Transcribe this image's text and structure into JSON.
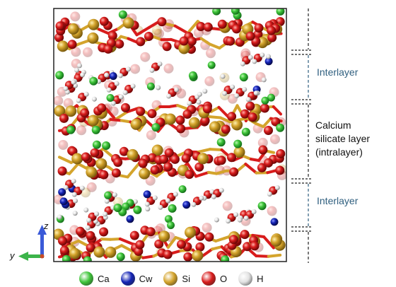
{
  "labels": {
    "interlayer_top": "Interlayer",
    "intralayer_line1": "Calcium",
    "intralayer_line2": "silicate layer",
    "intralayer_line3": "(intralayer)",
    "interlayer_bottom": "Interlayer"
  },
  "axes": {
    "z": "z",
    "y": "y"
  },
  "legend": [
    {
      "key": "Ca",
      "label": "Ca",
      "color": "#3fc53a",
      "icon": "ca-sphere-icon"
    },
    {
      "key": "Cw",
      "label": "Cw",
      "color": "#1424b5",
      "icon": "cw-sphere-icon"
    },
    {
      "key": "Si",
      "label": "Si",
      "color": "#d4a42c",
      "icon": "si-sphere-icon"
    },
    {
      "key": "O",
      "label": "O",
      "color": "#d81c1c",
      "icon": "o-sphere-icon"
    },
    {
      "key": "H",
      "label": "H",
      "color": "#e2e2e2",
      "icon": "h-sphere-icon"
    }
  ]
}
